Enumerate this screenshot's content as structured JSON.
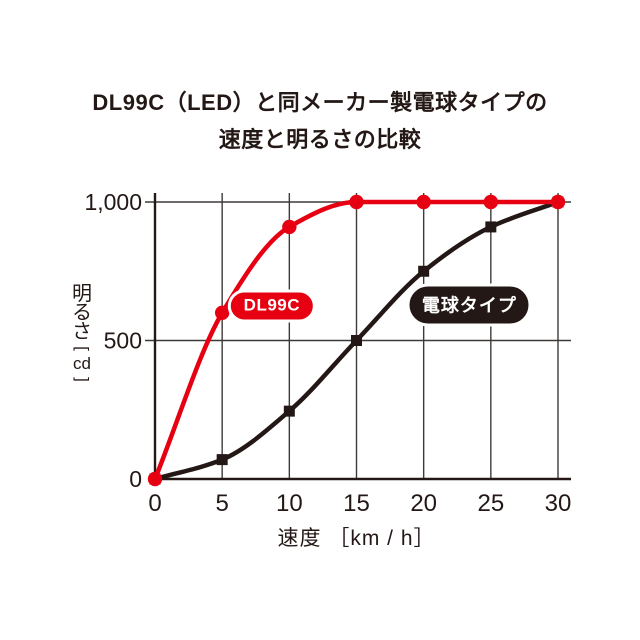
{
  "title": {
    "line1": "DL99C（LED）と同メーカー製電球タイプの",
    "line2": "速度と明るさの比較"
  },
  "chart_data": {
    "type": "line",
    "title": "DL99C（LED）と同メーカー製電球タイプの速度と明るさの比較",
    "xlabel": "速度 ［km / h］",
    "ylabel": "明るさ［cd］",
    "y_axis_title": {
      "text": "明るさ",
      "unit": "cd",
      "bracket_open": "[",
      "bracket_close": "]"
    },
    "x": [
      0,
      5,
      10,
      15,
      20,
      25,
      30
    ],
    "x_tick_labels": [
      "0",
      "5",
      "10",
      "15",
      "20",
      "25",
      "30"
    ],
    "y_ticks": [
      {
        "value": 0,
        "label": "0"
      },
      {
        "value": 500,
        "label": "500"
      },
      {
        "value": 1000,
        "label": "1,000"
      }
    ],
    "xlim": [
      0,
      30
    ],
    "ylim": [
      0,
      1000
    ],
    "grid": true,
    "legend_position": "inline-pills-on-plot",
    "series": [
      {
        "name": "DL99C",
        "color": "#e60012",
        "marker": "circle",
        "values": [
          0,
          600,
          910,
          1000,
          1000,
          1000,
          1000
        ],
        "pill": {
          "text": "DL99C",
          "bg": "#e60012",
          "fg": "#ffffff",
          "anchor_x": 8.7,
          "anchor_y": 625
        }
      },
      {
        "name": "電球タイプ",
        "color": "#231815",
        "marker": "square",
        "values": [
          0,
          70,
          245,
          500,
          750,
          910,
          1000
        ],
        "pill": {
          "text": "電球タイプ",
          "bg": "#231815",
          "fg": "#ffffff",
          "anchor_x": 23.4,
          "anchor_y": 628
        }
      }
    ],
    "colors": {
      "grid": "#3e3a39",
      "axis": "#231815",
      "text": "#231815",
      "background": "#ffffff"
    }
  }
}
